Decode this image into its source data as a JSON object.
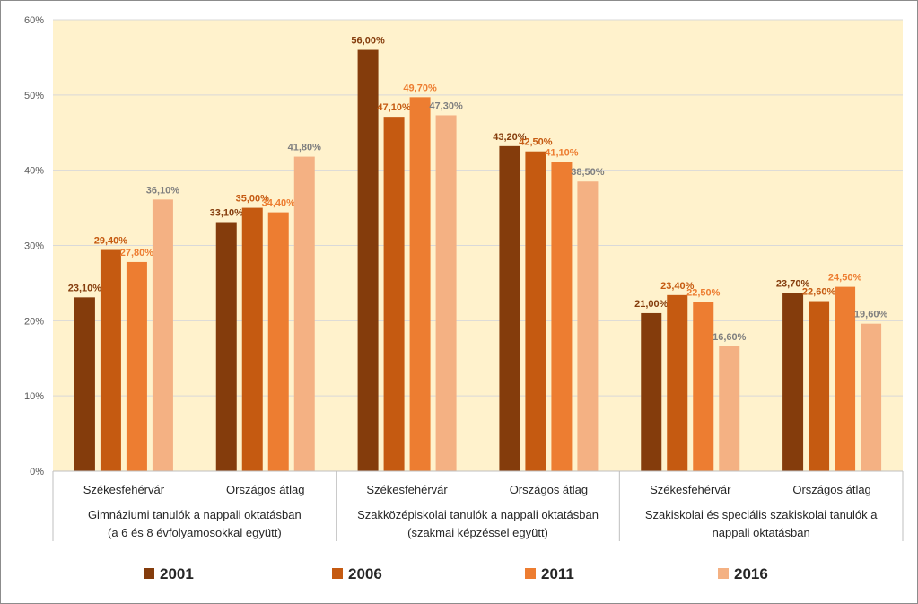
{
  "chart_data": {
    "type": "bar",
    "title": "",
    "xlabel": "",
    "ylabel": "",
    "ylim": [
      0,
      60
    ],
    "yticks": [
      "0%",
      "10%",
      "20%",
      "30%",
      "40%",
      "50%",
      "60%"
    ],
    "grid": true,
    "legend_position": "bottom",
    "groups": [
      {
        "label_lines": [
          "Gimnáziumi tanulók a nappali oktatásban",
          "(a 6 és 8 évfolyamosokkal együtt)"
        ],
        "categories": [
          "Székesfehérvár",
          "Országos átlag"
        ]
      },
      {
        "label_lines": [
          "Szakközépiskolai tanulók a nappali oktatásban",
          "(szakmai képzéssel együtt)"
        ],
        "categories": [
          "Székesfehérvár",
          "Országos átlag"
        ]
      },
      {
        "label_lines": [
          "Szakiskolai és speciális szakiskolai tanulók a",
          "nappali oktatásban"
        ],
        "categories": [
          "Székesfehérvár",
          "Országos átlag"
        ]
      }
    ],
    "series": [
      {
        "name": "2001",
        "color": "#843c0c",
        "values": [
          23.1,
          33.1,
          56.0,
          43.2,
          21.0,
          23.7
        ],
        "labels": [
          "23,10%",
          "33,10%",
          "56,00%",
          "43,20%",
          "21,00%",
          "23,70%"
        ]
      },
      {
        "name": "2006",
        "color": "#c55a11",
        "values": [
          29.4,
          35.0,
          47.1,
          42.5,
          23.4,
          22.6
        ],
        "labels": [
          "29,40%",
          "35,00%",
          "47,10%",
          "42,50%",
          "23,40%",
          "22,60%"
        ]
      },
      {
        "name": "2011",
        "color": "#ed7d31",
        "values": [
          27.8,
          34.4,
          49.7,
          41.1,
          22.5,
          24.5
        ],
        "labels": [
          "27,80%",
          "34,40%",
          "49,70%",
          "41,10%",
          "22,50%",
          "24,50%"
        ]
      },
      {
        "name": "2016",
        "color": "#f4b183",
        "values": [
          36.1,
          41.8,
          47.3,
          38.5,
          16.6,
          19.6
        ],
        "labels": [
          "36,10%",
          "41,80%",
          "47,30%",
          "38,50%",
          "16,60%",
          "19,60%"
        ]
      }
    ],
    "label_colors": [
      "#843c0c",
      "#c55a11",
      "#ed7d31",
      "#7f7f7f"
    ],
    "colors": {
      "plot_bg": "#fff2cc",
      "grid": "#d9d9d9",
      "axis": "#bfbfbf"
    }
  }
}
